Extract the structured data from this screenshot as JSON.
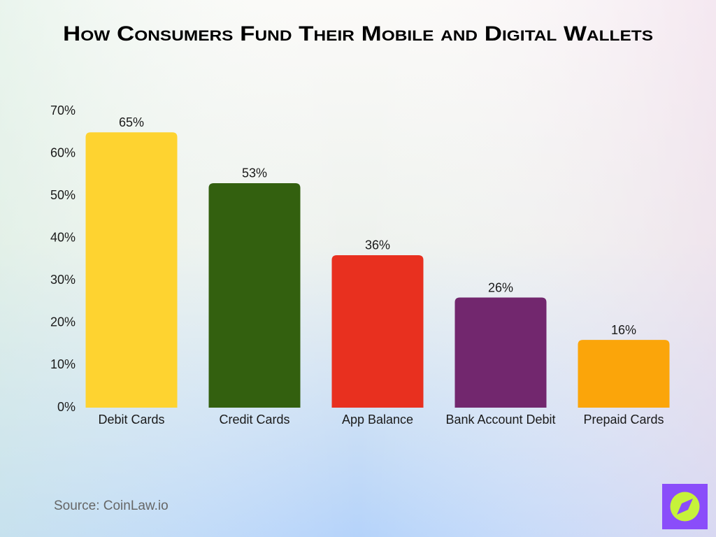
{
  "chart_data": {
    "type": "bar",
    "title": "How Consumers Fund Their Mobile and Digital Wallets",
    "categories": [
      "Debit Cards",
      "Credit Cards",
      "App Balance",
      "Bank Account Debit",
      "Prepaid Cards"
    ],
    "values": [
      65,
      53,
      36,
      26,
      16
    ],
    "value_labels": [
      "65%",
      "53%",
      "36%",
      "26%",
      "16%"
    ],
    "colors": [
      "#fed330",
      "#33600f",
      "#e8301f",
      "#72276e",
      "#fba50a"
    ],
    "ylim": [
      0,
      70
    ],
    "yticks": [
      {
        "value": 0,
        "label": "0%"
      },
      {
        "value": 10,
        "label": "10%"
      },
      {
        "value": 20,
        "label": "20%"
      },
      {
        "value": 30,
        "label": "30%"
      },
      {
        "value": 40,
        "label": "40%"
      },
      {
        "value": 50,
        "label": "50%"
      },
      {
        "value": 60,
        "label": "60%"
      },
      {
        "value": 70,
        "label": "70%"
      }
    ],
    "grid": false,
    "source": "Source: CoinLaw.io"
  }
}
